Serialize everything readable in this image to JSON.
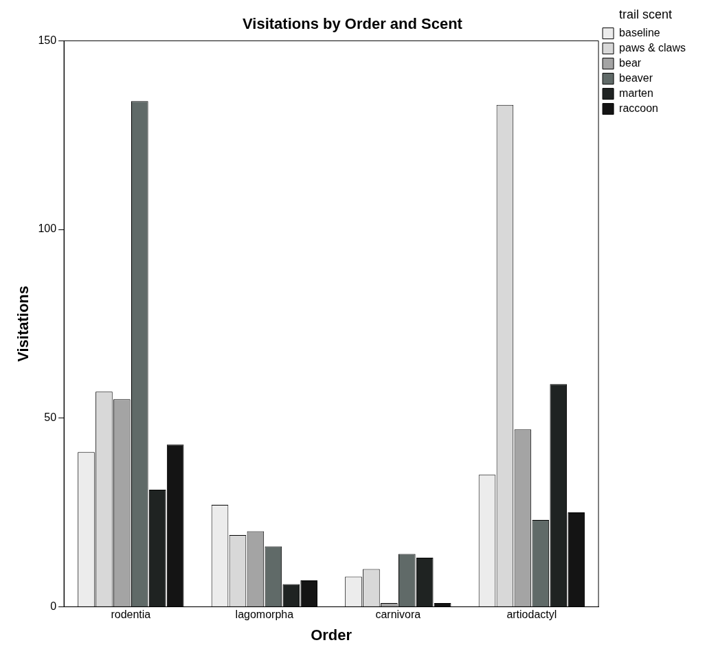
{
  "chart_data": {
    "type": "bar",
    "title": "Visitations by Order and Scent",
    "xlabel": "Order",
    "ylabel": "Visitations",
    "legend_title": "trail scent",
    "legend": "top right",
    "grid": false,
    "categories": [
      "rodentia",
      "lagomorpha",
      "carnivora",
      "artiodactyl"
    ],
    "ylim": [
      0,
      150
    ],
    "yticks": [
      0,
      50,
      100,
      150
    ],
    "series": [
      {
        "name": "baseline",
        "color": "#ececec",
        "values": [
          41,
          27,
          8,
          35
        ]
      },
      {
        "name": "paws & claws",
        "color": "#d8d8d8",
        "values": [
          57,
          19,
          10,
          133
        ]
      },
      {
        "name": "bear",
        "color": "#a4a4a4",
        "values": [
          55,
          20,
          1,
          47
        ]
      },
      {
        "name": "beaver",
        "color": "#606a68",
        "values": [
          134,
          16,
          14,
          23
        ]
      },
      {
        "name": "marten",
        "color": "#1f2322",
        "values": [
          31,
          6,
          13,
          59
        ]
      },
      {
        "name": "raccoon",
        "color": "#141414",
        "values": [
          43,
          7,
          1,
          25
        ]
      }
    ]
  }
}
